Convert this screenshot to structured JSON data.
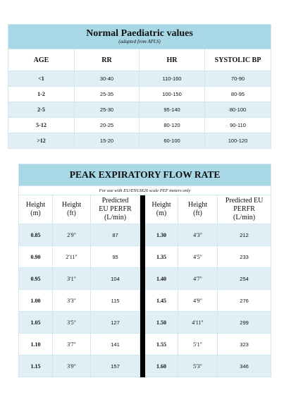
{
  "table1": {
    "title": "Normal Paediatric values",
    "subtitle": "(adapted from APLS)",
    "headers": [
      "AGE",
      "RR",
      "HR",
      "SYSTOLIC BP"
    ],
    "rows": [
      [
        "<1",
        "30-40",
        "110-160",
        "70-90"
      ],
      [
        "1-2",
        "25-35",
        "100-150",
        "80-95"
      ],
      [
        "2-5",
        "25-30",
        "95-140",
        "80-100"
      ],
      [
        "5-12",
        "20-25",
        "80-120",
        "90-110"
      ],
      [
        ">12",
        "15-20",
        "60-100",
        "100-120"
      ]
    ]
  },
  "table2": {
    "title": "PEAK EXPIRATORY FLOW RATE",
    "subtitle": "For use with EU/EN13826 scale PEF meters only",
    "headers": {
      "height_m_1": "Height",
      "height_m_2": "(m)",
      "height_ft_1": "Height",
      "height_ft_2": "(ft)",
      "pefr_1": "Predicted",
      "pefr_2": "EU PERFR",
      "pefr_3": "(L/min)",
      "pefr_r_1": "Predicted EU",
      "pefr_r_2": "PERFR",
      "pefr_r_3": "(L/min)"
    },
    "rows": [
      [
        "0.85",
        "2'9\"",
        "87",
        "1.30",
        "4'3\"",
        "212"
      ],
      [
        "0.90",
        "2'11\"",
        "95",
        "1.35",
        "4'5\"",
        "233"
      ],
      [
        "0.95",
        "3'1\"",
        "104",
        "1.40",
        "4'7\"",
        "254"
      ],
      [
        "1.00",
        "3'3\"",
        "115",
        "1.45",
        "4'9\"",
        "276"
      ],
      [
        "1.05",
        "3'5\"",
        "127",
        "1.50",
        "4'11\"",
        "299"
      ],
      [
        "1.10",
        "3'7\"",
        "141",
        "1.55",
        "5'1\"",
        "323"
      ],
      [
        "1.15",
        "3'9\"",
        "157",
        "1.60",
        "5'3\"",
        "346"
      ]
    ]
  }
}
